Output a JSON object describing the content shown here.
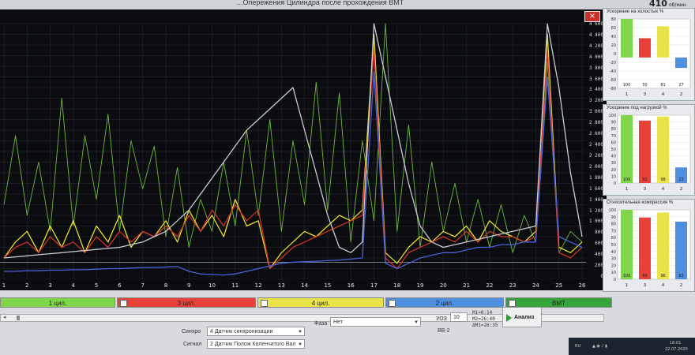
{
  "window": {
    "title": "...Опережения Цилиндра после прохождения ВМТ",
    "rpm": "410",
    "rpm_unit": "об/мин",
    "close_label": "×"
  },
  "chart_data": {
    "type": "line",
    "title": "",
    "x_ticks": [
      "1",
      "2",
      "3",
      "4",
      "5",
      "6",
      "7",
      "8",
      "9",
      "10",
      "11",
      "12",
      "13",
      "14",
      "15",
      "16",
      "17",
      "18",
      "19",
      "20",
      "21",
      "22",
      "23",
      "24",
      "25",
      "26"
    ],
    "y_ticks": [
      "4 600",
      "4 400",
      "4 200",
      "4 000",
      "3 800",
      "3 600",
      "3 400",
      "3 200",
      "3 000",
      "2 800",
      "2 600",
      "2 400",
      "2 200",
      "2 000",
      "1 800",
      "1 600",
      "1 400",
      "1 200",
      "1 000",
      "800",
      "600",
      "400",
      "200",
      "0"
    ],
    "ylim": [
      0,
      4800
    ],
    "series": [
      {
        "color": "#6fb93a",
        "values": [
          1400,
          2700,
          1200,
          2200,
          900,
          3400,
          1000,
          2700,
          1500,
          3100,
          900,
          2600,
          1700,
          2500,
          800,
          2100,
          600,
          1500,
          900,
          2200,
          1000,
          2800,
          1200,
          3000,
          900,
          2600,
          1400,
          3700,
          1300,
          3500,
          700,
          2600,
          1100,
          4800,
          900,
          2900,
          600,
          2200,
          900,
          1800,
          700,
          1500,
          600,
          1400,
          500,
          1200,
          700,
          4100,
          500,
          900,
          700
        ]
      },
      {
        "color": "#e8e030",
        "values": [
          400,
          700,
          900,
          500,
          1000,
          600,
          1100,
          500,
          1000,
          700,
          1200,
          600,
          900,
          800,
          1100,
          700,
          1300,
          900,
          1200,
          800,
          1500,
          1000,
          1100,
          200,
          500,
          700,
          900,
          800,
          1000,
          1200,
          1100,
          1300,
          4600,
          500,
          300,
          600,
          800,
          700,
          900,
          800,
          1000,
          700,
          1100,
          900,
          800,
          700,
          900,
          4600,
          600,
          500,
          700
        ]
      },
      {
        "color": "#d23228",
        "values": [
          400,
          600,
          700,
          500,
          800,
          600,
          700,
          500,
          800,
          600,
          900,
          700,
          900,
          800,
          1000,
          800,
          1200,
          900,
          1300,
          1000,
          1400,
          1100,
          1300,
          200,
          400,
          600,
          700,
          800,
          900,
          1000,
          1100,
          1200,
          4300,
          400,
          200,
          500,
          600,
          700,
          800,
          700,
          900,
          700,
          900,
          800,
          800,
          700,
          800,
          4300,
          500,
          400,
          600
        ]
      },
      {
        "color": "#4a63d8",
        "values": [
          150,
          150,
          160,
          160,
          170,
          170,
          180,
          180,
          190,
          200,
          200,
          210,
          220,
          220,
          230,
          240,
          150,
          100,
          90,
          80,
          100,
          150,
          200,
          250,
          300,
          320,
          330,
          340,
          350,
          360,
          380,
          400,
          3900,
          300,
          200,
          300,
          400,
          450,
          500,
          500,
          550,
          600,
          600,
          650,
          650,
          700,
          700,
          3800,
          800,
          700,
          600
        ]
      },
      {
        "color": "#c9ccd4",
        "values": [
          400,
          420,
          440,
          460,
          480,
          500,
          520,
          540,
          560,
          580,
          600,
          650,
          700,
          800,
          900,
          1100,
          1300,
          1600,
          1900,
          2200,
          2500,
          2800,
          3000,
          3200,
          3400,
          3600,
          2800,
          2000,
          1200,
          600,
          500,
          700,
          4800,
          3800,
          2800,
          1800,
          1000,
          700,
          600,
          650,
          700,
          750,
          800,
          850,
          900,
          950,
          1000,
          4800,
          3600,
          2000,
          800
        ]
      }
    ]
  },
  "cylinders": [
    {
      "label": "1 цил.",
      "color": "#7fd64a",
      "checked": false
    },
    {
      "label": "3 цил.",
      "color": "#e8413a",
      "checked": true
    },
    {
      "label": "4 цил.",
      "color": "#e9e34a",
      "checked": true
    },
    {
      "label": "2 цил.",
      "color": "#4f8fe0",
      "checked": true
    },
    {
      "label": "ВМТ",
      "color": "#35a43a",
      "checked": true
    }
  ],
  "controls": {
    "sync_label": "Синхро",
    "sync_value": "4  Датчик синхронизации",
    "signal_label": "Сигнал",
    "signal_value": "2  Датчик Полож Коленчатого Вал",
    "phase_label": "Фаза",
    "phase_value": "Нет",
    "uoz_label": "УОЗ",
    "uoz_value": "10",
    "bb_label": "ВВ-2",
    "m1": "M1=0:14",
    "m2": "M2=26:40",
    "dm": "ΔM1=26:35",
    "analyze_label": "Анализ"
  },
  "panels": [
    {
      "title": "Ускорение на холостых %",
      "y_ticks": [
        "80",
        "60",
        "40",
        "20",
        "0",
        "-20",
        "-40",
        "-60",
        "-80"
      ],
      "bars": [
        {
          "cyl": "1",
          "value": 100,
          "display": "100",
          "color": "#7fd64a"
        },
        {
          "cyl": "3",
          "value": 50,
          "display": "50",
          "color": "#e8413a"
        },
        {
          "cyl": "4",
          "value": 81,
          "display": "81",
          "color": "#e9e34a"
        },
        {
          "cyl": "2",
          "value": -27,
          "display": "27",
          "color": "#4f8fe0"
        }
      ],
      "ylim": [
        -80,
        100
      ]
    },
    {
      "title": "Ускорение под нагрузкой %",
      "y_ticks": [
        "100",
        "90",
        "80",
        "70",
        "60",
        "50",
        "40",
        "30",
        "20",
        "10",
        "0"
      ],
      "bars": [
        {
          "cyl": "1",
          "value": 100,
          "display": "100",
          "color": "#7fd64a"
        },
        {
          "cyl": "3",
          "value": 92,
          "display": "92",
          "color": "#e8413a"
        },
        {
          "cyl": "4",
          "value": 98,
          "display": "98",
          "color": "#e9e34a"
        },
        {
          "cyl": "2",
          "value": 23,
          "display": "23",
          "color": "#4f8fe0"
        }
      ],
      "ylim": [
        0,
        100
      ]
    },
    {
      "title": "Относительная компрессия %",
      "y_ticks": [
        "100",
        "90",
        "80",
        "70",
        "60",
        "50",
        "40",
        "30",
        "20",
        "10",
        "0"
      ],
      "bars": [
        {
          "cyl": "1",
          "value": 100,
          "display": "100",
          "color": "#7fd64a"
        },
        {
          "cyl": "3",
          "value": 89,
          "display": "89",
          "color": "#e8413a"
        },
        {
          "cyl": "4",
          "value": 96,
          "display": "96",
          "color": "#e9e34a"
        },
        {
          "cyl": "2",
          "value": 83,
          "display": "83",
          "color": "#4f8fe0"
        }
      ],
      "ylim": [
        0,
        100
      ]
    }
  ],
  "taskbar": {
    "lang": "RU",
    "time": "16:01",
    "date": "22.07.2020"
  }
}
